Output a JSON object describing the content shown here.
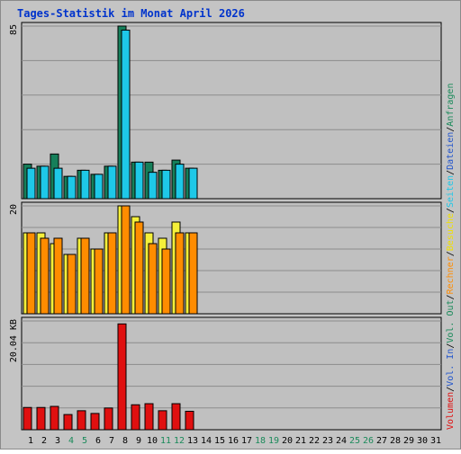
{
  "title": "Tages-Statistik im Monat April 2026",
  "colors": {
    "frame_bg": "#c4c4c4",
    "plot_bg": "#c0c0c0",
    "grid": "#8c8c8c",
    "title": "#0033cc",
    "day_normal": "#000000",
    "day_weekend": "#1a8a5a",
    "anfragen": "#167f5a",
    "dateien": "#1ec8e8",
    "seiten": "#1ec8e8",
    "besuche": "#f5f03a",
    "rechner": "#ff8c00",
    "vol_out": "#1a8a5a",
    "vol_in": "#2255cc",
    "volumen": "#e01010"
  },
  "legend": [
    {
      "text": "Volumen",
      "color": "#e01010"
    },
    {
      "text": "/",
      "color": "#000000"
    },
    {
      "text": "Vol. In",
      "color": "#2255cc"
    },
    {
      "text": "/",
      "color": "#000000"
    },
    {
      "text": "Vol. Out",
      "color": "#1a8a5a"
    },
    {
      "text": "/",
      "color": "#000000"
    },
    {
      "text": "Rechner",
      "color": "#ff8c00"
    },
    {
      "text": "/",
      "color": "#000000"
    },
    {
      "text": "Besuche",
      "color": "#f0e000"
    },
    {
      "text": "/",
      "color": "#000000"
    },
    {
      "text": "Seiten",
      "color": "#1ec8e8"
    },
    {
      "text": "/",
      "color": "#000000"
    },
    {
      "text": "Dateien",
      "color": "#2255cc"
    },
    {
      "text": "/",
      "color": "#000000"
    },
    {
      "text": "Anfragen",
      "color": "#1a8a5a"
    }
  ],
  "chart_data": {
    "type": "bar",
    "title": "Tages-Statistik im Monat April 2026",
    "categories": [
      "1",
      "2",
      "3",
      "4",
      "5",
      "6",
      "7",
      "8",
      "9",
      "10",
      "11",
      "12",
      "13",
      "14",
      "15",
      "16",
      "17",
      "18",
      "19",
      "20",
      "21",
      "22",
      "23",
      "24",
      "25",
      "26",
      "27",
      "28",
      "29",
      "30",
      "31"
    ],
    "weekend_days": [
      "4",
      "5",
      "11",
      "12",
      "18",
      "19",
      "25",
      "26"
    ],
    "panels": [
      {
        "ymax_label": "85",
        "ylim": [
          0,
          85
        ],
        "series": [
          {
            "name": "Anfragen",
            "values": [
              17,
              16,
              22,
              11,
              14,
              12,
              16,
              85,
              18,
              18,
              14,
              19,
              15
            ]
          },
          {
            "name": "Dateien",
            "values": [
              15,
              16,
              15,
              11,
              14,
              12,
              16,
              83,
              18,
              13,
              14,
              17,
              15
            ]
          }
        ]
      },
      {
        "ymax_label": "20",
        "ylim": [
          0,
          20
        ],
        "series": [
          {
            "name": "Besuche",
            "values": [
              15,
              15,
              13,
              11,
              14,
              12,
              15,
              20,
              18,
              15,
              14,
              17,
              15
            ]
          },
          {
            "name": "Rechner",
            "values": [
              15,
              14,
              14,
              11,
              14,
              12,
              15,
              20,
              17,
              13,
              12,
              15,
              15
            ]
          }
        ]
      },
      {
        "ymax_label": "20.04 KB",
        "ylim": [
          0,
          20.04
        ],
        "series": [
          {
            "name": "Volumen",
            "values": [
              4.1,
              4.1,
              4.3,
              2.8,
              3.5,
              3.0,
              4.0,
              19.5,
              4.6,
              4.8,
              3.5,
              4.8,
              3.4
            ]
          }
        ]
      }
    ]
  }
}
